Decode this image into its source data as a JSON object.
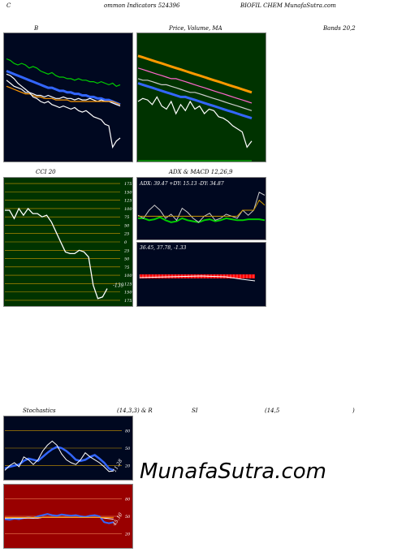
{
  "header": {
    "left": "C",
    "left2": "ommon  Indicators 524396",
    "right": "BIOFIL  CHEM MunafaSutra.com"
  },
  "titles": {
    "bb_left": "B",
    "bb_price": "Price,  Volume,  MA",
    "bb_right": "Bands 20,2",
    "cci": "CCI 20",
    "adx_macd": "ADX  & MACD 12,26,9",
    "stoch": "Stochastics",
    "stoch_params": "(14,3,3) & R",
    "rsi": "SI",
    "rsi_params": "(14,5",
    "rsi_close": ")"
  },
  "colors": {
    "dark_panel": "#000820",
    "green_panel": "#003300",
    "cci_panel": "#003300",
    "rsi_panel": "#990000",
    "blue": "#3366ff",
    "orange": "#ff9900",
    "green_line": "#00cc00",
    "white": "#ffffff",
    "gold": "#cc9900",
    "red": "#ff0000"
  },
  "watermark": "MunafaSutra.com",
  "chart_data": [
    {
      "type": "line",
      "panel": "bollinger",
      "series": [
        {
          "color": "#00cc00",
          "values": [
            88,
            87,
            85,
            84,
            85,
            84,
            82,
            83,
            82,
            80,
            79,
            78,
            79,
            77,
            76,
            76,
            75,
            75,
            74,
            75,
            74,
            74,
            73,
            73,
            72,
            73,
            72,
            71,
            72,
            70,
            71
          ]
        },
        {
          "color": "#3366ff",
          "values": [
            80,
            79,
            78,
            77,
            76,
            75,
            74,
            73,
            72,
            71,
            70,
            69,
            69,
            68,
            67,
            67,
            66,
            66,
            65,
            65,
            64,
            64,
            63,
            63,
            62,
            62,
            61,
            61,
            60,
            59,
            58
          ]
        },
        {
          "color": "#ffffff",
          "values": [
            74,
            72,
            70,
            69,
            68,
            66,
            66,
            65,
            64,
            64,
            63,
            64,
            63,
            62,
            62,
            63,
            62,
            62,
            61,
            62,
            61,
            61,
            62,
            61,
            60,
            61,
            60,
            60,
            59,
            58,
            57
          ]
        },
        {
          "color": "#ff9900",
          "values": [
            70,
            69,
            68,
            67,
            66,
            65,
            65,
            64,
            63,
            63,
            62,
            62,
            62,
            61,
            61,
            61,
            61,
            60,
            60,
            60,
            60,
            60,
            60,
            60,
            60,
            60,
            60,
            60,
            60,
            59,
            58
          ]
        },
        {
          "color": "#ffffff",
          "values": [
            78,
            77,
            75,
            72,
            70,
            68,
            66,
            63,
            62,
            60,
            59,
            60,
            58,
            57,
            56,
            57,
            56,
            55,
            56,
            54,
            53,
            54,
            52,
            50,
            49,
            48,
            45,
            44,
            30,
            34,
            36
          ]
        }
      ]
    },
    {
      "type": "line",
      "panel": "price_ma",
      "series": [
        {
          "color": "#ff9900",
          "values": [
            90,
            89,
            88,
            87,
            86,
            85,
            84,
            83,
            82,
            81,
            80,
            79,
            78,
            77,
            76,
            75,
            74,
            73,
            72,
            71,
            70,
            69,
            68,
            67,
            66
          ]
        },
        {
          "color": "#ff66cc",
          "values": [
            82,
            81,
            80,
            79,
            78,
            77,
            76,
            75,
            75,
            74,
            73,
            72,
            71,
            70,
            69,
            68,
            67,
            66,
            65,
            64,
            63,
            62,
            61,
            60,
            59
          ]
        },
        {
          "color": "#cccccc",
          "values": [
            75,
            74,
            74,
            73,
            72,
            71,
            71,
            70,
            69,
            68,
            67,
            66,
            66,
            65,
            64,
            63,
            62,
            61,
            60,
            59,
            58,
            57,
            56,
            55,
            54
          ]
        },
        {
          "color": "#3366ff",
          "values": [
            72,
            71,
            70,
            69,
            68,
            67,
            66,
            65,
            64,
            63,
            63,
            62,
            61,
            60,
            59,
            58,
            57,
            56,
            55,
            54,
            53,
            52,
            51,
            50,
            49
          ]
        },
        {
          "color": "#ffffff",
          "values": [
            60,
            62,
            61,
            58,
            63,
            57,
            55,
            60,
            52,
            58,
            54,
            60,
            55,
            57,
            52,
            55,
            54,
            50,
            49,
            47,
            44,
            42,
            40,
            30,
            34
          ]
        }
      ]
    },
    {
      "type": "line",
      "panel": "cci",
      "title": "CCI 20",
      "ticks": [
        175,
        150,
        125,
        100,
        75,
        50,
        25,
        0,
        -25,
        -50,
        -75,
        -100,
        -125,
        -150,
        -175
      ],
      "tick_labels": [
        "175",
        "150",
        "125",
        "100",
        "75",
        "50",
        "25",
        "0",
        "25",
        "50",
        "75",
        "100",
        "125",
        "150",
        "175"
      ],
      "ylim": [
        -185,
        185
      ],
      "last_value_label": "-139",
      "series": [
        {
          "color": "#ffffff",
          "values": [
            95,
            95,
            70,
            100,
            80,
            100,
            85,
            85,
            75,
            80,
            60,
            30,
            0,
            -30,
            -35,
            -35,
            -25,
            -30,
            -45,
            -130,
            -170,
            -165,
            -140
          ]
        }
      ]
    },
    {
      "type": "line",
      "panel": "adx",
      "readout": "ADX: 39.47 +DY: 15.13 -DY: 34.87",
      "series": [
        {
          "color": "#00cc00",
          "values": [
            22,
            22,
            20,
            21,
            23,
            20,
            18,
            19,
            22,
            20,
            19,
            18,
            20,
            21,
            19,
            20,
            22,
            21,
            20,
            20,
            21,
            21,
            21,
            20
          ]
        },
        {
          "color": "#cccccc",
          "values": [
            25,
            22,
            30,
            35,
            30,
            22,
            26,
            20,
            32,
            28,
            22,
            18,
            24,
            27,
            20,
            22,
            26,
            24,
            22,
            30,
            25,
            30,
            48,
            45
          ]
        },
        {
          "color": "#cc9900",
          "values": [
            24,
            24,
            24,
            24,
            24,
            24,
            24,
            24,
            24,
            24,
            24,
            24,
            24,
            24,
            24,
            24,
            24,
            24,
            24,
            30,
            30,
            30,
            40,
            35
          ]
        }
      ]
    },
    {
      "type": "bar",
      "panel": "macd",
      "readout": "36.45,  37.78,  -1.33"
    },
    {
      "type": "line",
      "panel": "stochastics",
      "title": "Stochastics",
      "params": "(14,3,3) & R",
      "ticks": [
        80,
        50,
        20
      ],
      "tick_labels": [
        "80",
        "50",
        "20"
      ],
      "ylim": [
        0,
        100
      ],
      "last_value_label": "11.28",
      "series": [
        {
          "color": "#3366ff",
          "values": [
            15,
            18,
            20,
            22,
            28,
            32,
            30,
            28,
            35,
            42,
            48,
            52,
            50,
            45,
            38,
            30,
            28,
            30,
            35,
            38,
            32,
            25,
            15,
            12
          ]
        },
        {
          "color": "#ffffff",
          "values": [
            12,
            20,
            25,
            18,
            35,
            30,
            22,
            30,
            45,
            55,
            62,
            55,
            40,
            30,
            25,
            22,
            30,
            42,
            35,
            30,
            25,
            18,
            10,
            11
          ]
        }
      ]
    },
    {
      "type": "line",
      "panel": "rsi",
      "title": "SI",
      "params": "(14,5",
      "ticks": [
        80,
        50,
        20
      ],
      "tick_labels": [
        "80",
        "50",
        "20"
      ],
      "ylim": [
        0,
        100
      ],
      "last_value_label": "45.10",
      "series": [
        {
          "color": "#3366ff",
          "values": [
            45,
            44,
            46,
            45,
            47,
            48,
            47,
            50,
            52,
            54,
            52,
            51,
            53,
            52,
            51,
            52,
            50,
            49,
            51,
            52,
            50,
            40,
            38,
            40
          ]
        },
        {
          "color": "#ffffff",
          "values": [
            47,
            47,
            47,
            47,
            47,
            47,
            47,
            47,
            48,
            48,
            48,
            48,
            48,
            48,
            48,
            48,
            48,
            48,
            48,
            48,
            48,
            47,
            46,
            45
          ]
        },
        {
          "color": "#ff9900",
          "values": [
            48,
            48,
            48,
            48,
            48,
            48,
            48,
            48,
            48,
            48,
            48,
            48,
            48,
            48,
            48,
            48,
            48,
            48,
            48,
            48,
            48,
            48,
            48,
            48
          ]
        }
      ]
    }
  ]
}
